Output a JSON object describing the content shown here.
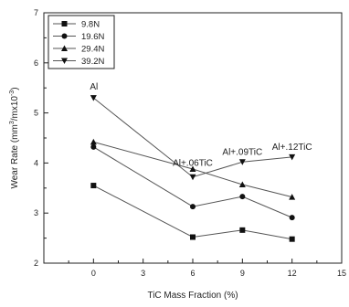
{
  "chart_data": {
    "type": "line",
    "title": "",
    "xlabel": "TiC Mass Fraction (%)",
    "ylabel_main": "Wear Rate (mm",
    "ylabel_sup1": "3",
    "ylabel_mid": "/mx10",
    "ylabel_sup2": "-3",
    "ylabel_end": ")",
    "xlim": [
      -3,
      15
    ],
    "ylim": [
      2,
      7
    ],
    "xticks": [
      0,
      3,
      6,
      9,
      12,
      15
    ],
    "xtick_labels": [
      "0",
      "3",
      "6",
      "9",
      "12",
      "15"
    ],
    "yticks": [
      2,
      3,
      4,
      5,
      6,
      7
    ],
    "ytick_labels": [
      "2",
      "3",
      "4",
      "5",
      "6",
      "7"
    ],
    "x": [
      0,
      6,
      9,
      12
    ],
    "legend_position": "top-left",
    "grid": false,
    "series": [
      {
        "name": "9.8N",
        "marker": "square",
        "values": [
          3.55,
          2.52,
          2.66,
          2.48
        ]
      },
      {
        "name": "19.6N",
        "marker": "circle",
        "values": [
          4.32,
          3.13,
          3.33,
          2.91
        ]
      },
      {
        "name": "29.4N",
        "marker": "triangle-up",
        "values": [
          4.42,
          3.88,
          3.57,
          3.32
        ]
      },
      {
        "name": "39.2N",
        "marker": "triangle-down",
        "values": [
          5.3,
          3.72,
          4.02,
          4.12
        ]
      }
    ],
    "annotations": [
      {
        "text": "Al",
        "x": 0,
        "y": 5.3
      },
      {
        "text": "Al+.06TiC",
        "x": 6,
        "y": 3.72
      },
      {
        "text": "Al+.09TiC",
        "x": 9,
        "y": 4.02
      },
      {
        "text": "Al+.12TiC",
        "x": 12,
        "y": 4.12
      }
    ],
    "colors": {
      "line": "#555555",
      "marker": "#111111",
      "axis": "#222222"
    }
  }
}
